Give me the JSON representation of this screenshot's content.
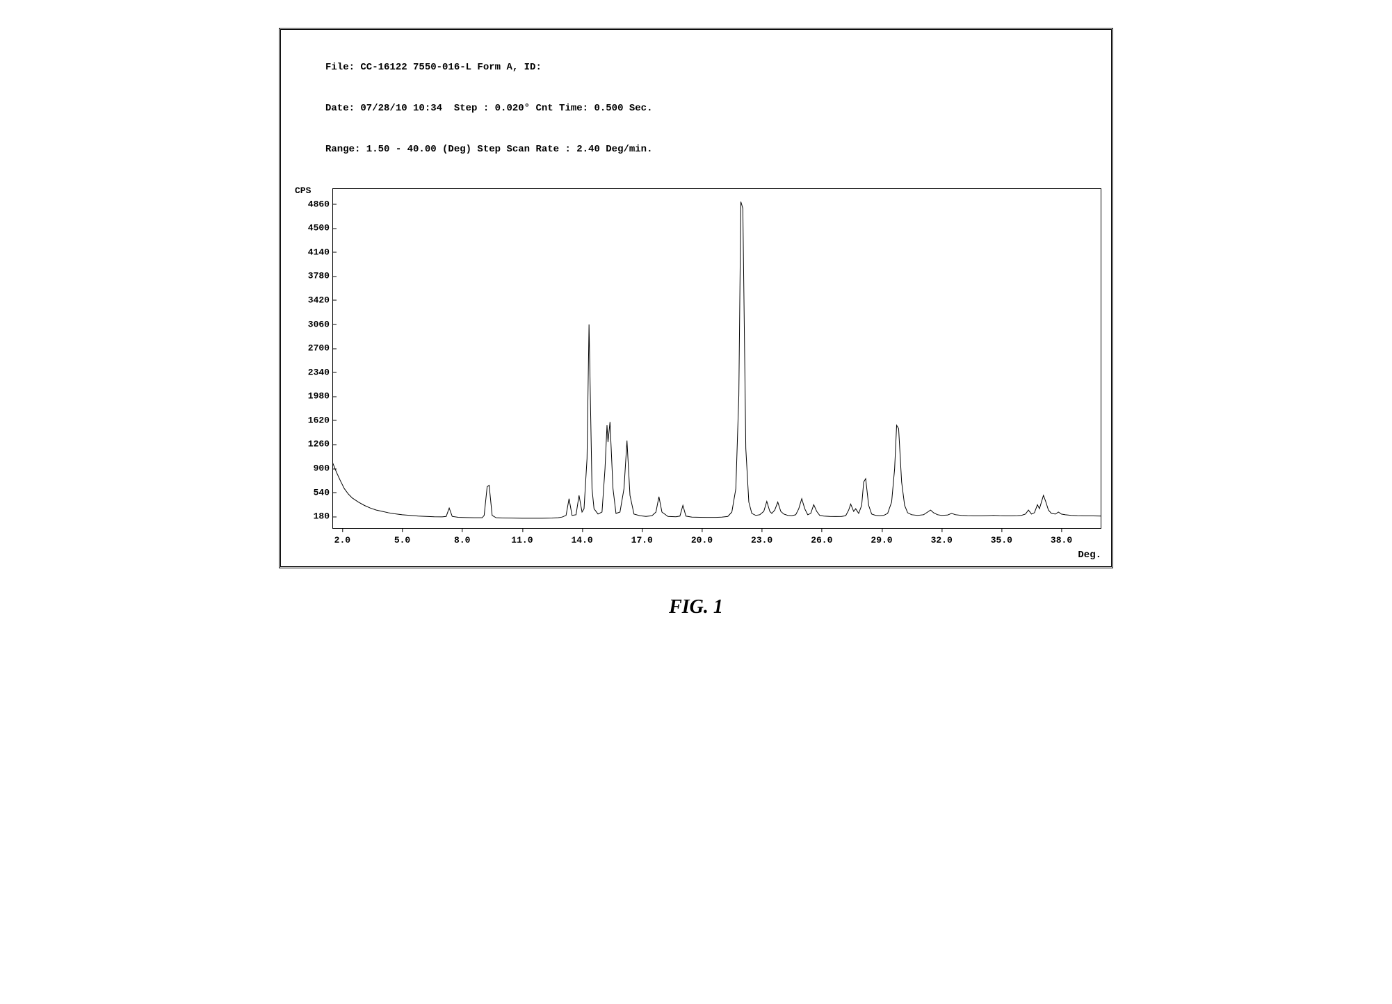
{
  "header": {
    "line1": "File: CC-16122 7550-016-L Form A, ID:",
    "line2": "Date: 07/28/10 10:34  Step : 0.020° Cnt Time: 0.500 Sec.",
    "line3": "Range: 1.50 - 40.00 (Deg) Step Scan Rate : 2.40 Deg/min."
  },
  "chart": {
    "type": "line",
    "y_axis_label": "CPS",
    "x_axis_label": "Deg.",
    "xlim": [
      1.5,
      40.0
    ],
    "ylim": [
      0,
      5100
    ],
    "x_ticks": [
      2.0,
      5.0,
      8.0,
      11.0,
      14.0,
      17.0,
      20.0,
      23.0,
      26.0,
      29.0,
      32.0,
      35.0,
      38.0
    ],
    "y_ticks": [
      180,
      540,
      900,
      1260,
      1620,
      1980,
      2340,
      2700,
      3060,
      3420,
      3780,
      4140,
      4500,
      4860
    ],
    "line_color": "#000000",
    "line_width": 1,
    "background_color": "#ffffff",
    "title_fontsize": 14,
    "label_fontsize": 13,
    "font_family": "Courier New",
    "font_weight": "bold",
    "data": [
      [
        1.5,
        1000
      ],
      [
        1.7,
        850
      ],
      [
        1.9,
        720
      ],
      [
        2.1,
        600
      ],
      [
        2.3,
        520
      ],
      [
        2.5,
        460
      ],
      [
        2.8,
        400
      ],
      [
        3.1,
        350
      ],
      [
        3.4,
        310
      ],
      [
        3.7,
        280
      ],
      [
        4.0,
        260
      ],
      [
        4.3,
        240
      ],
      [
        4.6,
        225
      ],
      [
        5.0,
        210
      ],
      [
        5.4,
        200
      ],
      [
        5.8,
        190
      ],
      [
        6.2,
        185
      ],
      [
        6.6,
        180
      ],
      [
        7.0,
        178
      ],
      [
        7.2,
        185
      ],
      [
        7.35,
        310
      ],
      [
        7.5,
        185
      ],
      [
        7.8,
        172
      ],
      [
        8.2,
        168
      ],
      [
        8.6,
        165
      ],
      [
        9.0,
        165
      ],
      [
        9.1,
        200
      ],
      [
        9.25,
        630
      ],
      [
        9.35,
        650
      ],
      [
        9.5,
        200
      ],
      [
        9.7,
        165
      ],
      [
        10.0,
        162
      ],
      [
        10.5,
        160
      ],
      [
        11.0,
        158
      ],
      [
        11.5,
        158
      ],
      [
        12.0,
        158
      ],
      [
        12.5,
        160
      ],
      [
        12.8,
        165
      ],
      [
        13.0,
        175
      ],
      [
        13.2,
        200
      ],
      [
        13.35,
        450
      ],
      [
        13.5,
        200
      ],
      [
        13.7,
        210
      ],
      [
        13.85,
        500
      ],
      [
        14.0,
        250
      ],
      [
        14.1,
        300
      ],
      [
        14.25,
        1050
      ],
      [
        14.35,
        3060
      ],
      [
        14.5,
        600
      ],
      [
        14.6,
        300
      ],
      [
        14.8,
        220
      ],
      [
        15.0,
        250
      ],
      [
        15.15,
        900
      ],
      [
        15.25,
        1550
      ],
      [
        15.3,
        1300
      ],
      [
        15.4,
        1600
      ],
      [
        15.55,
        600
      ],
      [
        15.7,
        230
      ],
      [
        15.9,
        250
      ],
      [
        16.1,
        600
      ],
      [
        16.25,
        1320
      ],
      [
        16.4,
        500
      ],
      [
        16.6,
        220
      ],
      [
        16.9,
        195
      ],
      [
        17.2,
        185
      ],
      [
        17.5,
        195
      ],
      [
        17.7,
        250
      ],
      [
        17.85,
        480
      ],
      [
        18.0,
        250
      ],
      [
        18.3,
        185
      ],
      [
        18.7,
        180
      ],
      [
        18.9,
        190
      ],
      [
        19.05,
        350
      ],
      [
        19.2,
        190
      ],
      [
        19.5,
        175
      ],
      [
        19.9,
        172
      ],
      [
        20.3,
        170
      ],
      [
        20.7,
        170
      ],
      [
        21.0,
        175
      ],
      [
        21.3,
        185
      ],
      [
        21.5,
        250
      ],
      [
        21.7,
        600
      ],
      [
        21.85,
        2000
      ],
      [
        21.95,
        4900
      ],
      [
        22.05,
        4800
      ],
      [
        22.2,
        1200
      ],
      [
        22.35,
        400
      ],
      [
        22.5,
        230
      ],
      [
        22.7,
        200
      ],
      [
        22.9,
        210
      ],
      [
        23.1,
        260
      ],
      [
        23.25,
        410
      ],
      [
        23.4,
        260
      ],
      [
        23.5,
        230
      ],
      [
        23.65,
        280
      ],
      [
        23.8,
        400
      ],
      [
        23.95,
        260
      ],
      [
        24.1,
        220
      ],
      [
        24.3,
        200
      ],
      [
        24.5,
        195
      ],
      [
        24.7,
        210
      ],
      [
        24.85,
        300
      ],
      [
        25.0,
        450
      ],
      [
        25.15,
        300
      ],
      [
        25.3,
        210
      ],
      [
        25.45,
        230
      ],
      [
        25.6,
        360
      ],
      [
        25.75,
        260
      ],
      [
        25.9,
        200
      ],
      [
        26.1,
        190
      ],
      [
        26.4,
        185
      ],
      [
        26.7,
        183
      ],
      [
        27.0,
        185
      ],
      [
        27.2,
        195
      ],
      [
        27.35,
        280
      ],
      [
        27.45,
        370
      ],
      [
        27.6,
        260
      ],
      [
        27.7,
        300
      ],
      [
        27.85,
        230
      ],
      [
        28.0,
        350
      ],
      [
        28.1,
        700
      ],
      [
        28.2,
        750
      ],
      [
        28.35,
        350
      ],
      [
        28.5,
        220
      ],
      [
        28.7,
        200
      ],
      [
        28.9,
        195
      ],
      [
        29.1,
        200
      ],
      [
        29.3,
        230
      ],
      [
        29.5,
        400
      ],
      [
        29.65,
        900
      ],
      [
        29.75,
        1550
      ],
      [
        29.85,
        1500
      ],
      [
        30.0,
        700
      ],
      [
        30.15,
        350
      ],
      [
        30.3,
        240
      ],
      [
        30.5,
        210
      ],
      [
        30.8,
        200
      ],
      [
        31.1,
        210
      ],
      [
        31.3,
        250
      ],
      [
        31.45,
        280
      ],
      [
        31.6,
        240
      ],
      [
        31.8,
        210
      ],
      [
        32.0,
        200
      ],
      [
        32.3,
        205
      ],
      [
        32.5,
        230
      ],
      [
        32.7,
        210
      ],
      [
        33.0,
        200
      ],
      [
        33.3,
        195
      ],
      [
        33.6,
        193
      ],
      [
        34.0,
        192
      ],
      [
        34.3,
        195
      ],
      [
        34.6,
        200
      ],
      [
        34.9,
        195
      ],
      [
        35.2,
        193
      ],
      [
        35.5,
        192
      ],
      [
        35.8,
        195
      ],
      [
        36.0,
        200
      ],
      [
        36.2,
        220
      ],
      [
        36.35,
        280
      ],
      [
        36.5,
        220
      ],
      [
        36.65,
        240
      ],
      [
        36.8,
        360
      ],
      [
        36.9,
        300
      ],
      [
        37.0,
        400
      ],
      [
        37.1,
        500
      ],
      [
        37.2,
        420
      ],
      [
        37.35,
        280
      ],
      [
        37.5,
        230
      ],
      [
        37.7,
        220
      ],
      [
        37.85,
        250
      ],
      [
        38.0,
        220
      ],
      [
        38.2,
        210
      ],
      [
        38.5,
        200
      ],
      [
        38.8,
        195
      ],
      [
        39.2,
        193
      ],
      [
        39.6,
        192
      ],
      [
        40.0,
        190
      ]
    ]
  },
  "caption": "FIG. 1"
}
